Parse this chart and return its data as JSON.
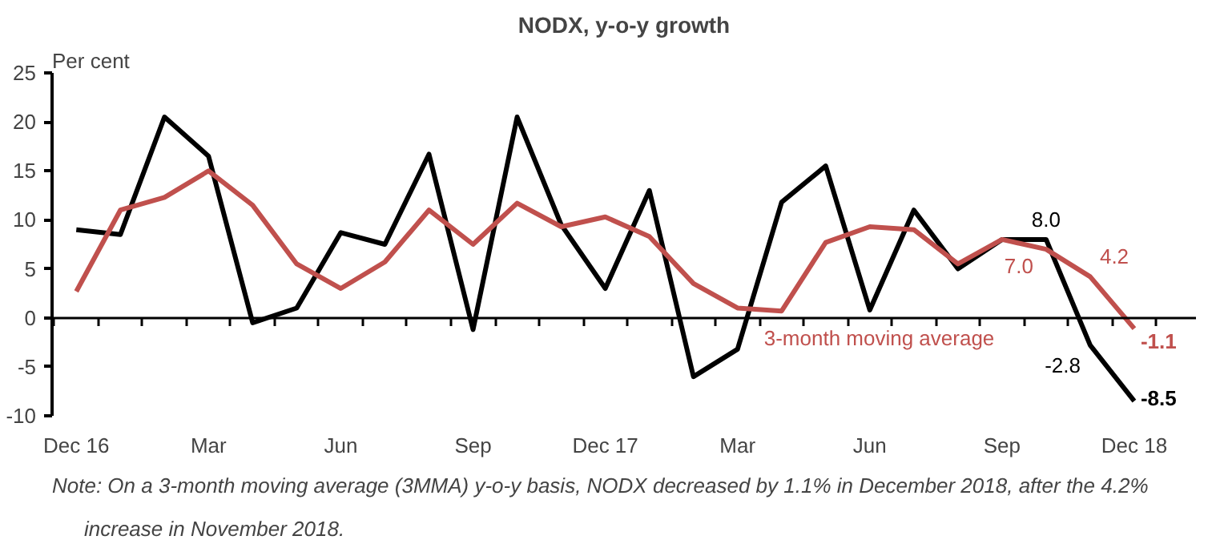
{
  "chart_data": {
    "type": "line",
    "title": "NODX, y-o-y growth",
    "ylabel": "Per cent",
    "categories": [
      "Dec 16",
      null,
      null,
      "Mar",
      null,
      null,
      "Jun",
      null,
      null,
      "Sep",
      null,
      null,
      "Dec 17",
      null,
      null,
      "Mar",
      null,
      null,
      "Jun",
      null,
      null,
      "Sep",
      null,
      null,
      "Dec 18"
    ],
    "series": [
      {
        "color": "#000000",
        "values": [
          9.0,
          8.5,
          20.5,
          16.5,
          -0.5,
          1.0,
          8.7,
          7.5,
          16.7,
          -1.2,
          20.5,
          9.5,
          3.0,
          13.0,
          -6.0,
          -3.2,
          11.8,
          15.5,
          0.8,
          11.0,
          5.0,
          8.0,
          8.0,
          -2.8,
          -8.5
        ],
        "value_labels": [
          null,
          null,
          null,
          null,
          null,
          null,
          null,
          null,
          null,
          null,
          null,
          null,
          null,
          null,
          null,
          null,
          null,
          null,
          null,
          null,
          null,
          null,
          "8.0",
          "-2.8",
          "-8.5"
        ]
      },
      {
        "name": "3-month moving average",
        "color": "#c0504d",
        "values": [
          2.7,
          11.0,
          12.3,
          15.0,
          11.5,
          5.5,
          3.0,
          5.7,
          11.0,
          7.5,
          11.7,
          9.3,
          10.3,
          8.3,
          3.5,
          1.0,
          0.7,
          7.7,
          9.3,
          9.0,
          5.5,
          8.0,
          7.0,
          4.2,
          -1.1
        ],
        "value_labels": [
          null,
          null,
          null,
          null,
          null,
          null,
          null,
          null,
          null,
          null,
          null,
          null,
          null,
          null,
          null,
          null,
          null,
          null,
          null,
          null,
          null,
          null,
          "7.0",
          "4.2",
          "-1.1"
        ]
      }
    ],
    "ylim": [
      -10,
      25
    ],
    "yticks": [
      -10,
      -5,
      0,
      5,
      10,
      15,
      20,
      25
    ],
    "marker": "none",
    "line_style": "solid",
    "annotations": [
      "Note: On a 3-month moving average (3MMA) y-o-y basis, NODX decreased by 1.1% in December 2018, after the 4.2% increase in November 2018."
    ]
  }
}
